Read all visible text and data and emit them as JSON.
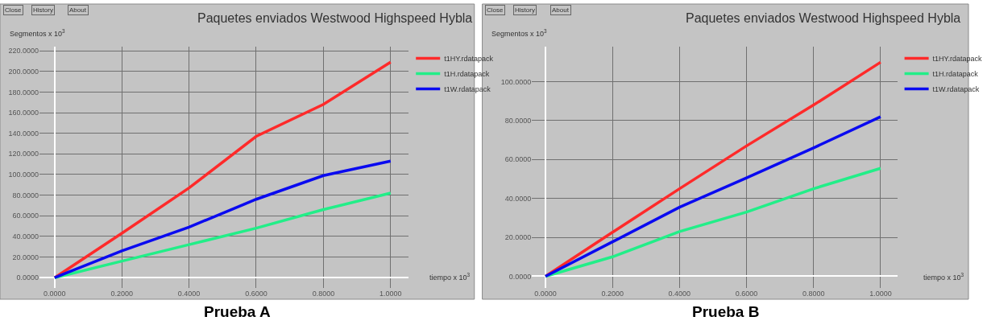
{
  "chart_data": [
    {
      "type": "line",
      "title": "Paquetes enviados Westwood Highspeed Hybla",
      "xlabel": "tiempo x 10$^{3}$",
      "ylabel": "Segmentos x 10$^{3}$",
      "x": [
        0,
        0.2,
        0.4,
        0.6,
        0.8,
        1.0
      ],
      "series": [
        {
          "name": "t1HY.rdatapack",
          "color": "#ff2a2a",
          "values": [
            0,
            43,
            87,
            137,
            168,
            209
          ]
        },
        {
          "name": "t1H.rdatapack",
          "color": "#22ee88",
          "values": [
            0,
            16,
            32,
            48,
            66,
            82
          ]
        },
        {
          "name": "t1W.rdatapack",
          "color": "#0a0af0",
          "values": [
            0,
            26,
            49,
            76,
            99,
            113
          ]
        }
      ],
      "xlim": [
        -0.045,
        1.054
      ],
      "ylim": [
        -10,
        224
      ],
      "xticks": [
        {
          "value": 0,
          "label": "0.0000"
        },
        {
          "value": 0.2,
          "label": "0.2000"
        },
        {
          "value": 0.4,
          "label": "0.4000"
        },
        {
          "value": 0.6,
          "label": "0.6000"
        },
        {
          "value": 0.8,
          "label": "0.8000"
        },
        {
          "value": 1.0,
          "label": "1.0000"
        }
      ],
      "yticks": [
        {
          "value": 0,
          "label": "0.0000"
        },
        {
          "value": 20,
          "label": "20.0000"
        },
        {
          "value": 40,
          "label": "40.0000"
        },
        {
          "value": 60,
          "label": "60.0000"
        },
        {
          "value": 80,
          "label": "80.0000"
        },
        {
          "value": 100,
          "label": "100.0000"
        },
        {
          "value": 120,
          "label": "120.0000"
        },
        {
          "value": 140,
          "label": "140.0000"
        },
        {
          "value": 160,
          "label": "160.0000"
        },
        {
          "value": 180,
          "label": "180.0000"
        },
        {
          "value": 200,
          "label": "200.0000"
        },
        {
          "value": 220,
          "label": "220.0000"
        }
      ],
      "grid": true,
      "legend": "top right",
      "marker": "none",
      "line_style": "solid",
      "annotations": [
        "Close",
        "History",
        "About",
        "Prueba A"
      ]
    },
    {
      "type": "line",
      "title": "Paquetes enviados Westwood Highspeed Hybla",
      "xlabel": "tiempo x 10$^{3}$",
      "ylabel": "Segmentos x 10$^{3}$",
      "x": [
        0,
        0.2,
        0.4,
        0.6,
        0.8,
        1.0
      ],
      "series": [
        {
          "name": "t1HY.rdatapack",
          "color": "#ff2a2a",
          "values": [
            0,
            22.6,
            45,
            67,
            88,
            110
          ]
        },
        {
          "name": "t1H.rdatapack",
          "color": "#22ee88",
          "values": [
            0,
            10,
            23,
            33,
            45,
            55.5
          ]
        },
        {
          "name": "t1W.rdatapack",
          "color": "#0a0af0",
          "values": [
            0,
            17.7,
            35.5,
            50.6,
            66,
            82
          ]
        }
      ],
      "xlim": [
        -0.04,
        1.05
      ],
      "ylim": [
        -6,
        118
      ],
      "xticks": [
        {
          "value": 0,
          "label": "0.0000"
        },
        {
          "value": 0.2,
          "label": "0.2000"
        },
        {
          "value": 0.4,
          "label": "0.4000"
        },
        {
          "value": 0.6,
          "label": "0.6000"
        },
        {
          "value": 0.8,
          "label": "0.8000"
        },
        {
          "value": 1.0,
          "label": "1.0000"
        }
      ],
      "yticks": [
        {
          "value": 0,
          "label": "0.0000"
        },
        {
          "value": 20,
          "label": "20.0000"
        },
        {
          "value": 40,
          "label": "40.0000"
        },
        {
          "value": 60,
          "label": "60.0000"
        },
        {
          "value": 80,
          "label": "80.0000"
        },
        {
          "value": 100,
          "label": "100.0000"
        }
      ],
      "grid": true,
      "legend": "top right",
      "marker": "none",
      "line_style": "solid",
      "annotations": [
        "Close",
        "History",
        "About",
        "Prueba B"
      ]
    }
  ]
}
